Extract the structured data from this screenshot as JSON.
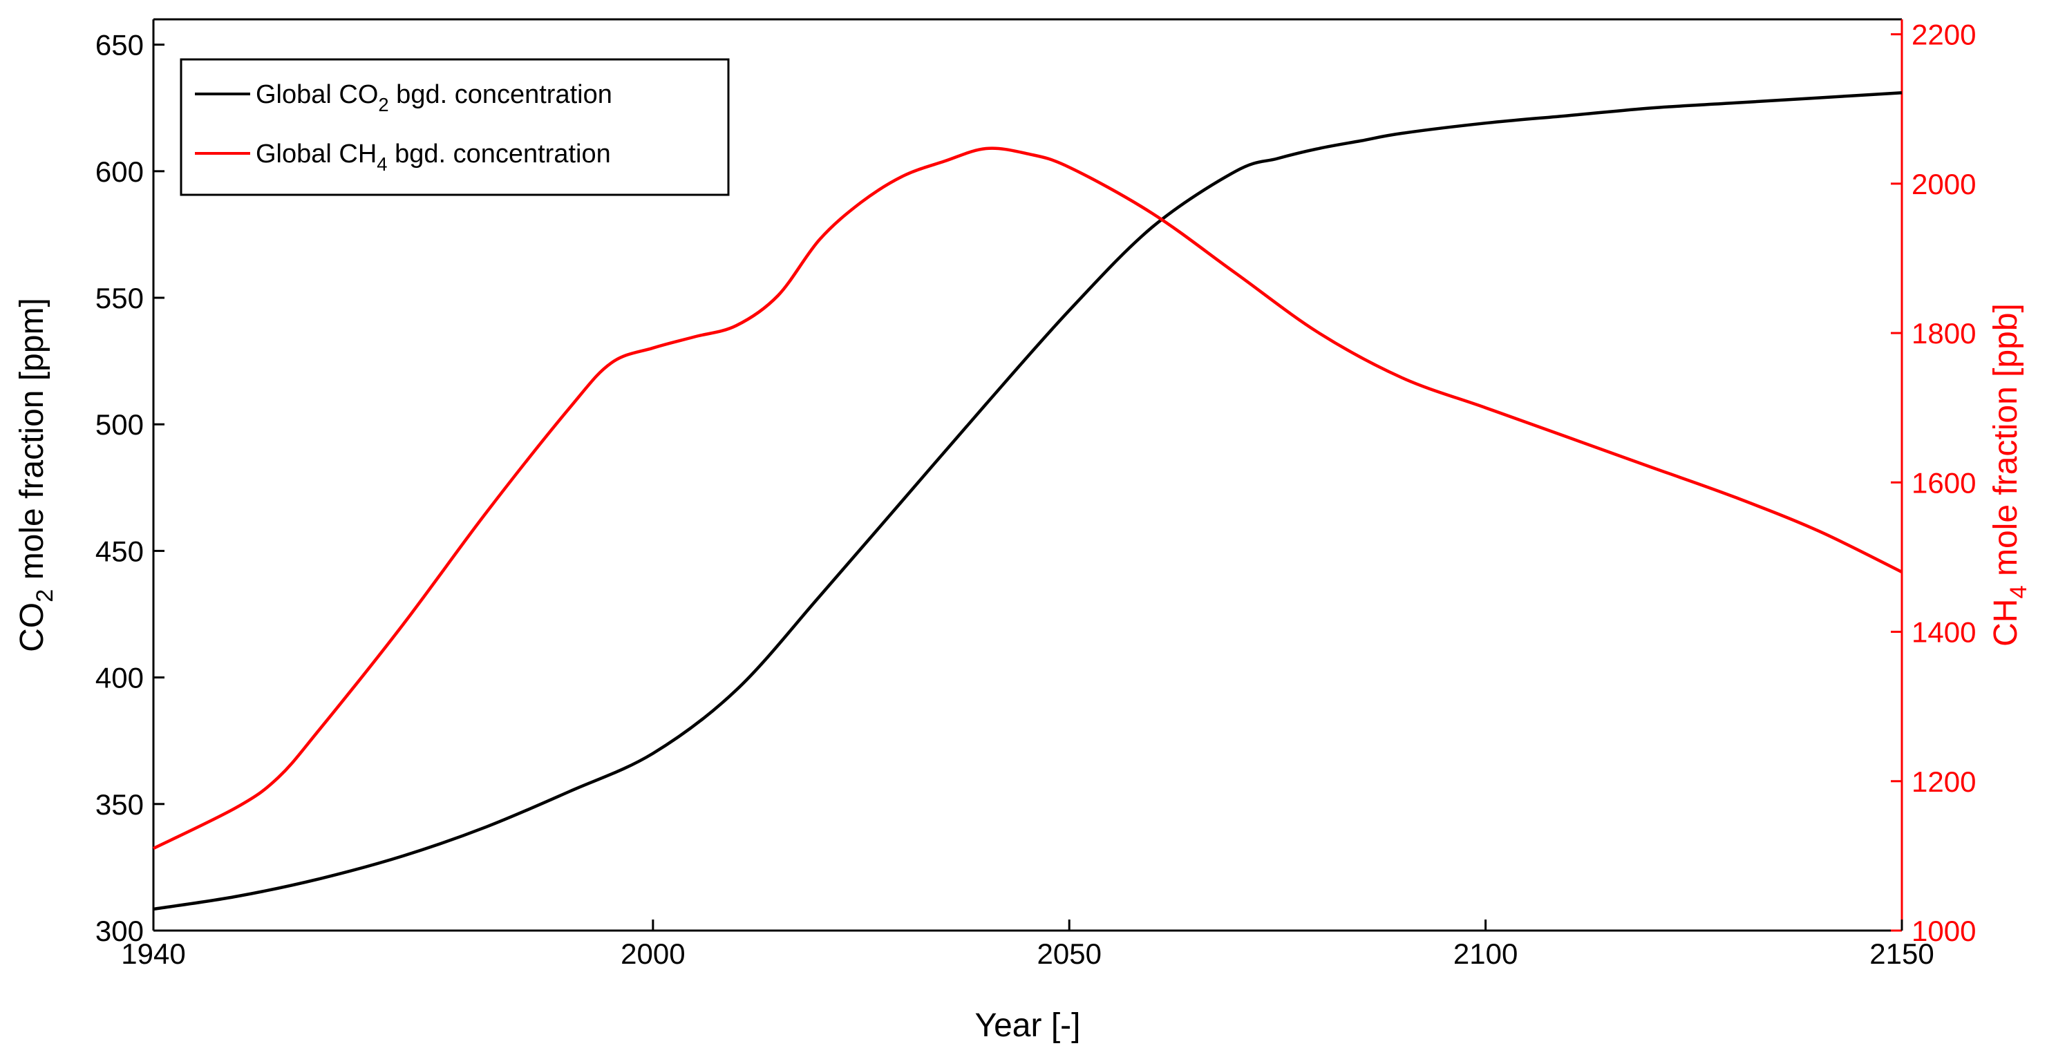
{
  "chart_data": {
    "type": "line",
    "x_axis": {
      "label": "Year [-]",
      "range": [
        1940,
        2150
      ],
      "ticks": [
        1940,
        2000,
        2050,
        2100,
        2150
      ]
    },
    "y_axis_left": {
      "label_main": "CO",
      "label_sub": "2",
      "label_rest": " mole fraction [ppm]",
      "range": [
        300,
        660
      ],
      "ticks": [
        300,
        350,
        400,
        450,
        500,
        550,
        600,
        650
      ],
      "color": "#000000"
    },
    "y_axis_right": {
      "label_main": "CH",
      "label_sub": "4",
      "label_rest": " mole fraction [ppb]",
      "range": [
        1000,
        2220
      ],
      "ticks": [
        1000,
        1200,
        1400,
        1600,
        1800,
        2000,
        2200
      ],
      "color": "#ff0000"
    },
    "series": [
      {
        "name_main": "Global CO",
        "name_sub": "2",
        "name_rest": " bgd. concentration",
        "axis": "left",
        "color": "#000000",
        "x": [
          1940,
          1950,
          1960,
          1970,
          1980,
          1990,
          2000,
          2010,
          2020,
          2030,
          2040,
          2050,
          2060,
          2070,
          2075,
          2080,
          2085,
          2090,
          2100,
          2110,
          2120,
          2130,
          2140,
          2150
        ],
        "values": [
          308.5,
          313.5,
          320.5,
          329.5,
          341,
          355,
          370,
          395,
          432,
          470,
          508,
          545,
          578,
          600,
          605,
          609,
          612,
          615,
          619,
          622,
          625,
          627,
          629,
          631
        ]
      },
      {
        "name_main": "Global CH",
        "name_sub": "4",
        "name_rest": " bgd. concentration",
        "axis": "right",
        "color": "#ff0000",
        "x": [
          1940,
          1950,
          1955,
          1960,
          1970,
          1980,
          1990,
          1995,
          2000,
          2005,
          2010,
          2015,
          2020,
          2025,
          2030,
          2035,
          2040,
          2045,
          2050,
          2060,
          2070,
          2080,
          2090,
          2100,
          2110,
          2120,
          2130,
          2140,
          2150
        ],
        "values": [
          1110,
          1165,
          1205,
          1270,
          1410,
          1560,
          1700,
          1760,
          1780,
          1795,
          1810,
          1850,
          1925,
          1975,
          2010,
          2030,
          2047,
          2040,
          2022,
          1960,
          1880,
          1800,
          1740,
          1700,
          1660,
          1620,
          1580,
          1535,
          1480
        ]
      }
    ],
    "legend_location": "top-left",
    "grid": false
  }
}
